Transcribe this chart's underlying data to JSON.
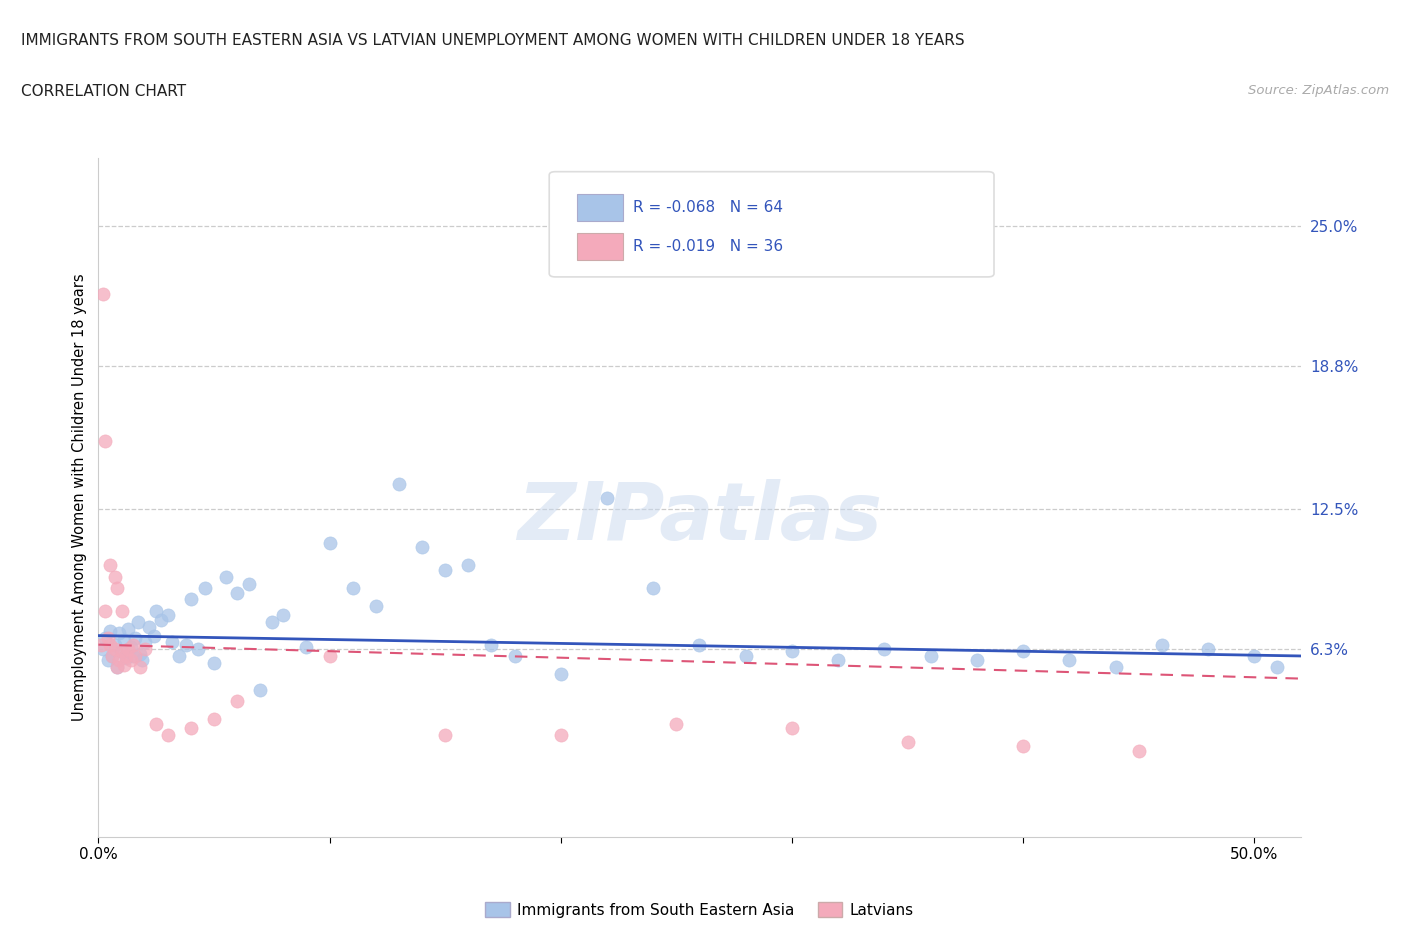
{
  "title_line1": "IMMIGRANTS FROM SOUTH EASTERN ASIA VS LATVIAN UNEMPLOYMENT AMONG WOMEN WITH CHILDREN UNDER 18 YEARS",
  "title_line2": "CORRELATION CHART",
  "source": "Source: ZipAtlas.com",
  "ylabel": "Unemployment Among Women with Children Under 18 years",
  "xlim": [
    0.0,
    0.52
  ],
  "ylim": [
    -0.02,
    0.28
  ],
  "xtick_positions": [
    0.0,
    0.1,
    0.2,
    0.3,
    0.4,
    0.5
  ],
  "xtick_labels": [
    "0.0%",
    "",
    "",
    "",
    "",
    "50.0%"
  ],
  "ytick_labels": [
    "6.3%",
    "12.5%",
    "18.8%",
    "25.0%"
  ],
  "ytick_values": [
    0.063,
    0.125,
    0.188,
    0.25
  ],
  "blue_scatter_color": "#a8c4e8",
  "pink_scatter_color": "#f4aabb",
  "blue_line_color": "#3355bb",
  "pink_line_color": "#dd5577",
  "text_color_blue": "#3355bb",
  "legend_label_blue": "Immigrants from South Eastern Asia",
  "legend_label_pink": "Latvians",
  "legend_R_blue": "R = -0.068",
  "legend_N_blue": "N = 64",
  "legend_R_pink": "R = -0.019",
  "legend_N_pink": "N = 36",
  "watermark": "ZIPatlas",
  "bg_color": "#ffffff",
  "grid_color": "#cccccc",
  "blue_scatter_x": [
    0.002,
    0.003,
    0.004,
    0.005,
    0.006,
    0.007,
    0.008,
    0.009,
    0.01,
    0.011,
    0.012,
    0.013,
    0.014,
    0.015,
    0.016,
    0.017,
    0.018,
    0.019,
    0.02,
    0.022,
    0.024,
    0.025,
    0.027,
    0.03,
    0.032,
    0.035,
    0.038,
    0.04,
    0.043,
    0.046,
    0.05,
    0.055,
    0.06,
    0.065,
    0.07,
    0.075,
    0.08,
    0.09,
    0.1,
    0.11,
    0.12,
    0.13,
    0.14,
    0.15,
    0.16,
    0.17,
    0.18,
    0.2,
    0.22,
    0.24,
    0.26,
    0.28,
    0.3,
    0.32,
    0.34,
    0.36,
    0.38,
    0.4,
    0.42,
    0.44,
    0.46,
    0.48,
    0.5,
    0.51
  ],
  "blue_scatter_y": [
    0.063,
    0.068,
    0.058,
    0.071,
    0.06,
    0.065,
    0.055,
    0.07,
    0.062,
    0.067,
    0.059,
    0.072,
    0.064,
    0.06,
    0.068,
    0.075,
    0.061,
    0.058,
    0.066,
    0.073,
    0.069,
    0.08,
    0.076,
    0.078,
    0.066,
    0.06,
    0.065,
    0.085,
    0.063,
    0.09,
    0.057,
    0.095,
    0.088,
    0.092,
    0.045,
    0.075,
    0.078,
    0.064,
    0.11,
    0.09,
    0.082,
    0.136,
    0.108,
    0.098,
    0.1,
    0.065,
    0.06,
    0.052,
    0.13,
    0.09,
    0.065,
    0.06,
    0.062,
    0.058,
    0.063,
    0.06,
    0.058,
    0.062,
    0.058,
    0.055,
    0.065,
    0.063,
    0.06,
    0.055
  ],
  "pink_scatter_x": [
    0.001,
    0.002,
    0.003,
    0.003,
    0.004,
    0.005,
    0.005,
    0.006,
    0.007,
    0.007,
    0.008,
    0.008,
    0.009,
    0.01,
    0.01,
    0.011,
    0.012,
    0.013,
    0.014,
    0.015,
    0.016,
    0.018,
    0.02,
    0.025,
    0.03,
    0.04,
    0.05,
    0.06,
    0.1,
    0.15,
    0.2,
    0.25,
    0.3,
    0.35,
    0.4,
    0.45
  ],
  "pink_scatter_y": [
    0.065,
    0.22,
    0.155,
    0.08,
    0.068,
    0.065,
    0.1,
    0.06,
    0.063,
    0.095,
    0.055,
    0.09,
    0.058,
    0.062,
    0.08,
    0.056,
    0.06,
    0.063,
    0.058,
    0.065,
    0.06,
    0.055,
    0.063,
    0.03,
    0.025,
    0.028,
    0.032,
    0.04,
    0.06,
    0.025,
    0.025,
    0.03,
    0.028,
    0.022,
    0.02,
    0.018
  ],
  "blue_trend_start_y": 0.069,
  "blue_trend_end_y": 0.06,
  "pink_trend_start_y": 0.065,
  "pink_trend_end_y": 0.05
}
